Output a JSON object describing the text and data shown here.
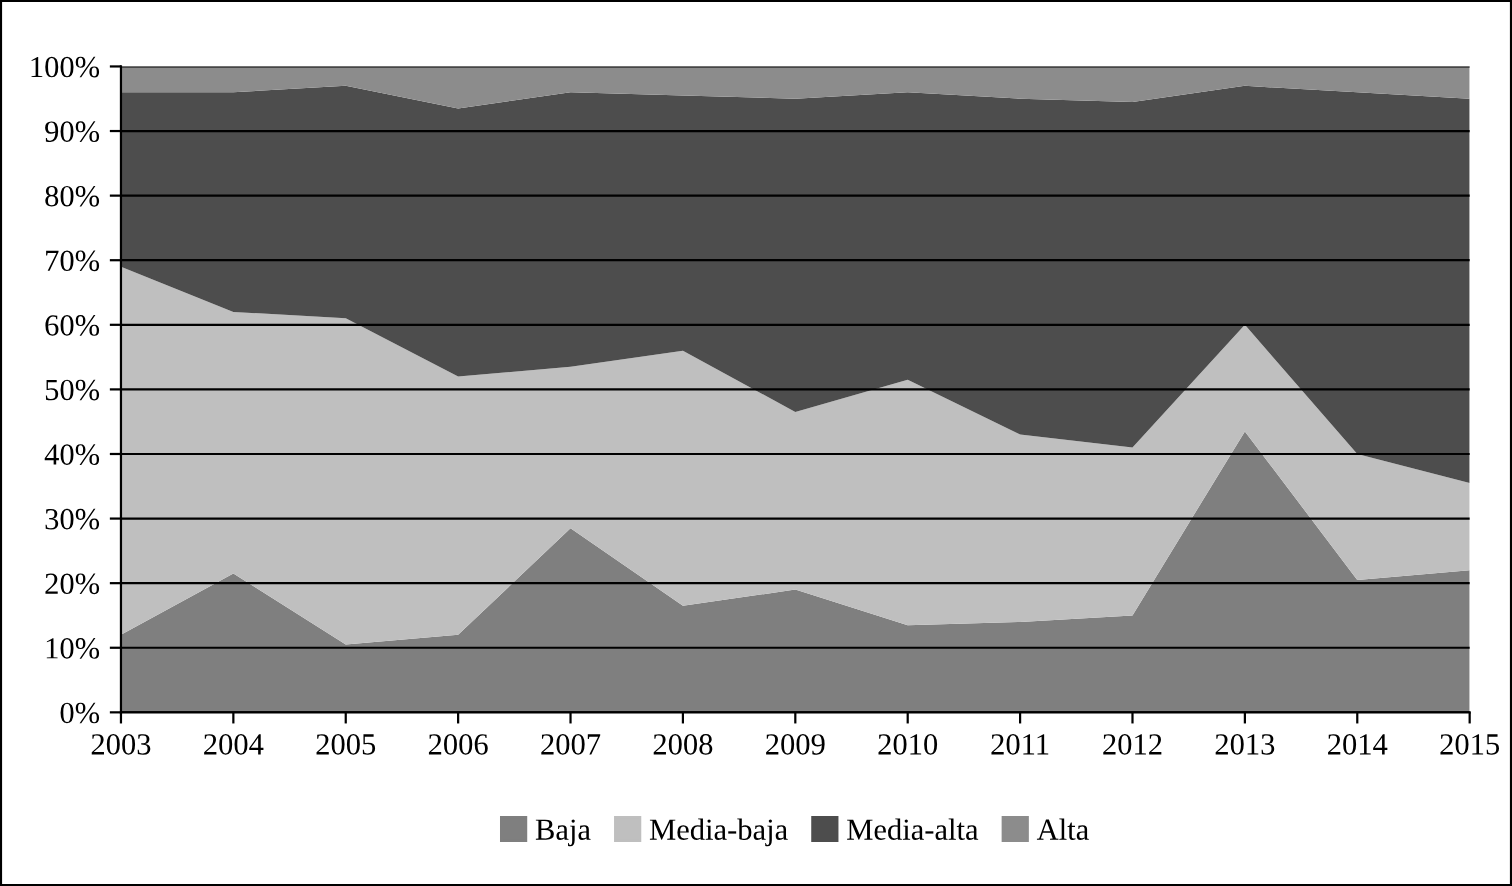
{
  "chart_data": {
    "type": "area",
    "stacked": true,
    "x": [
      2003,
      2004,
      2005,
      2006,
      2007,
      2008,
      2009,
      2010,
      2011,
      2012,
      2013,
      2014,
      2015
    ],
    "series": [
      {
        "name": "Baja",
        "color": "#7f7f7f",
        "values": [
          12,
          21.5,
          10.5,
          12,
          28.5,
          16.5,
          19,
          13.5,
          14,
          15,
          43.5,
          20.5,
          22
        ]
      },
      {
        "name": "Media-baja",
        "color": "#bfbfbf",
        "values": [
          57,
          40.5,
          50.5,
          40,
          25,
          39.5,
          27.5,
          38,
          29,
          26,
          16.5,
          19.5,
          13.5
        ]
      },
      {
        "name": "Media-alta",
        "color": "#4d4d4d",
        "values": [
          27,
          34,
          36,
          41.5,
          42.5,
          39.5,
          48.5,
          44.5,
          52,
          53.5,
          37,
          56,
          59.5
        ]
      },
      {
        "name": "Alta",
        "color": "#8c8c8c",
        "values": [
          4,
          4,
          3,
          6.5,
          4,
          4.5,
          5,
          4,
          5,
          5.5,
          3,
          4,
          5
        ]
      }
    ],
    "xlim": [
      2003,
      2015
    ],
    "xticks": [
      2003,
      2004,
      2005,
      2006,
      2007,
      2008,
      2009,
      2010,
      2011,
      2012,
      2013,
      2014,
      2015
    ],
    "ylim": [
      0,
      100
    ],
    "yticks": [
      {
        "value": 0,
        "label": "0%"
      },
      {
        "value": 10,
        "label": "10%"
      },
      {
        "value": 20,
        "label": "20%"
      },
      {
        "value": 30,
        "label": "30%"
      },
      {
        "value": 40,
        "label": "40%"
      },
      {
        "value": 50,
        "label": "50%"
      },
      {
        "value": 60,
        "label": "60%"
      },
      {
        "value": 70,
        "label": "70%"
      },
      {
        "value": 80,
        "label": "80%"
      },
      {
        "value": 90,
        "label": "90%"
      },
      {
        "value": 100,
        "label": "100%"
      }
    ],
    "grid": "y",
    "legend": "bottom"
  }
}
